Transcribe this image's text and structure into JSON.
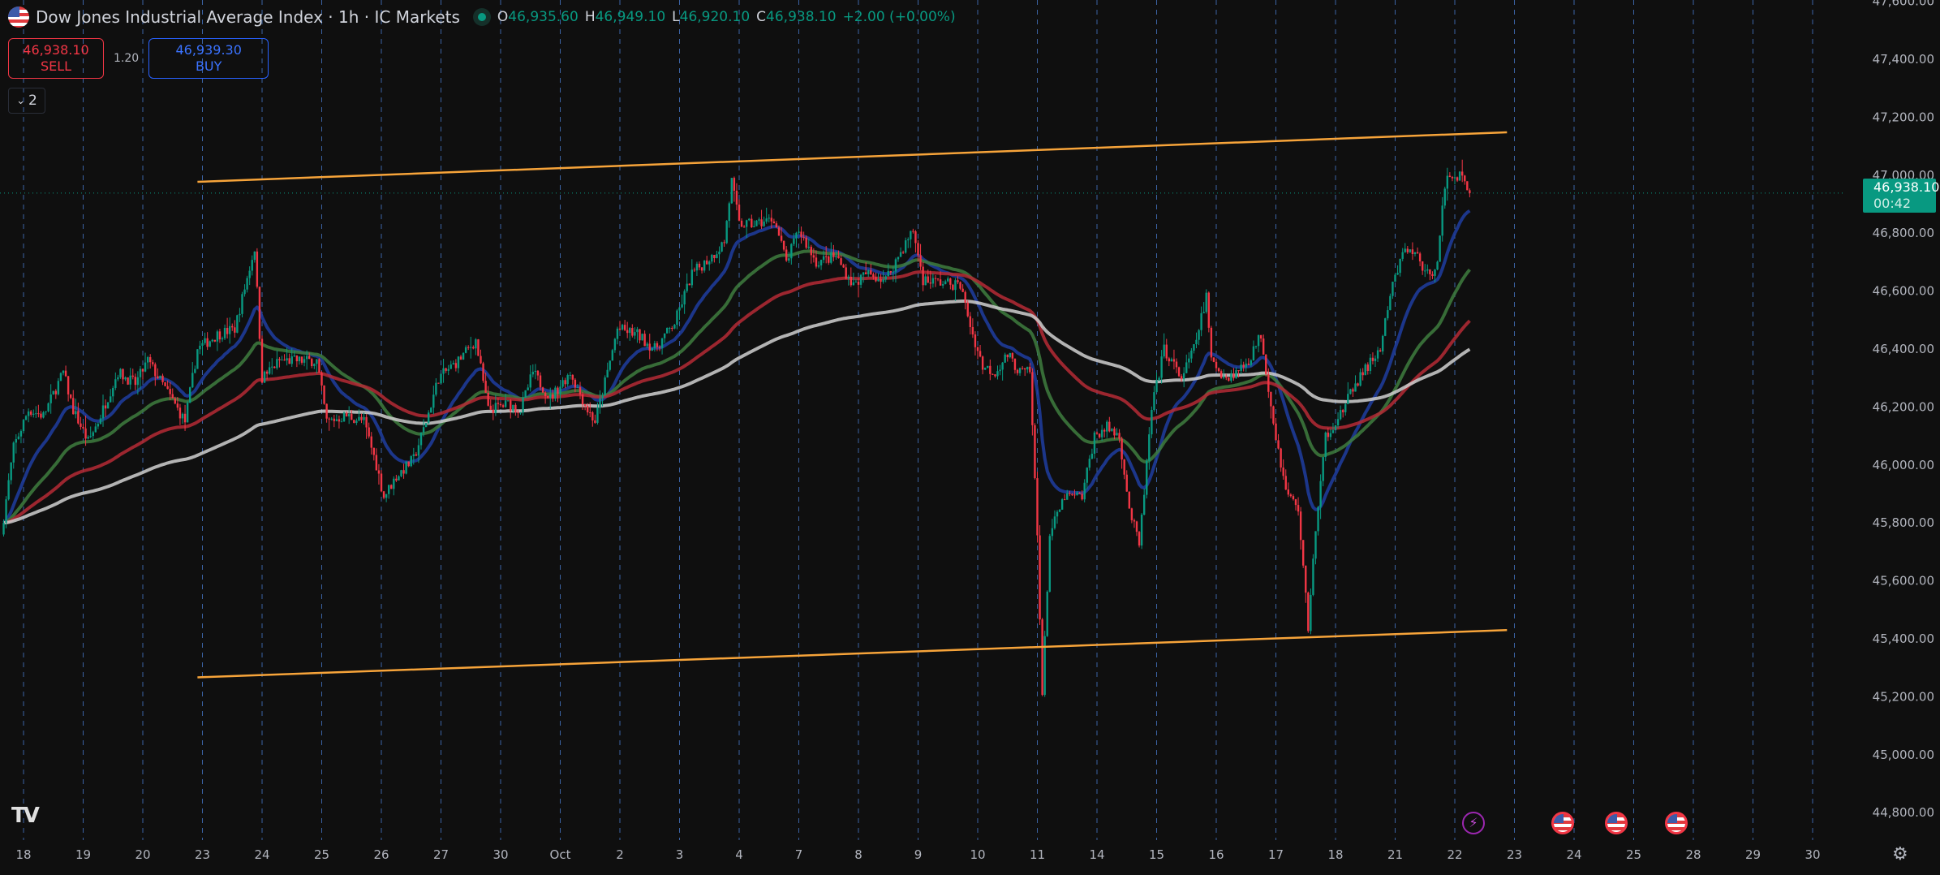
{
  "header": {
    "title": "Dow Jones Industrial Average Index · 1h · IC Markets",
    "ohlc": {
      "o_label": "O",
      "o": "46,935.60",
      "h_label": "H",
      "h": "46,949.10",
      "l_label": "L",
      "l": "46,920.10",
      "c_label": "C",
      "c": "46,938.10",
      "change": "+2.00 (+0.00%)"
    }
  },
  "trade": {
    "sell_price": "46,938.10",
    "sell_label": "SELL",
    "spread": "1.20",
    "buy_price": "46,939.30",
    "buy_label": "BUY"
  },
  "indicators_toggle": {
    "count": "2"
  },
  "price_label": {
    "price": "46,938.10",
    "countdown": "00:42"
  },
  "colors": {
    "up": "#089981",
    "down": "#f23645",
    "ma_fast": "#1f3da0",
    "ma_mid": "#3e7d3e",
    "ma_slow": "#b52a35",
    "ma_long": "#d0d0d0",
    "channel": "#f7a43a",
    "day_grid": "#4a7fd6"
  },
  "icons": {
    "logo": "tradingview-logo",
    "events": [
      "lightning-event-icon",
      "us-flag-event-icon",
      "us-flag-event-icon",
      "us-flag-event-icon"
    ],
    "settings": "gear-icon"
  },
  "chart_data": {
    "type": "candlestick",
    "timeframe": "1h",
    "y_ticks": [
      "47,600.00",
      "47,400.00",
      "47,200.00",
      "47,000.00",
      "46,800.00",
      "46,600.00",
      "46,400.00",
      "46,200.00",
      "46,000.00",
      "45,800.00",
      "45,600.00",
      "45,400.00",
      "45,200.00",
      "45,000.00",
      "44,800.00"
    ],
    "ylim": [
      44750,
      47650
    ],
    "x_ticks": [
      "18",
      "19",
      "20",
      "23",
      "24",
      "25",
      "26",
      "27",
      "30",
      "Oct",
      "2",
      "3",
      "4",
      "7",
      "8",
      "9",
      "10",
      "11",
      "14",
      "15",
      "16",
      "17",
      "18",
      "21",
      "22",
      "23",
      "24",
      "25",
      "28",
      "29",
      "30"
    ],
    "trading_days": [
      "Sep 17",
      "Sep 18",
      "Sep 19",
      "Sep 20",
      "Sep 23",
      "Sep 24",
      "Sep 25",
      "Sep 26",
      "Sep 27",
      "Sep 30",
      "Oct 1",
      "Oct 2",
      "Oct 3",
      "Oct 4",
      "Oct 7",
      "Oct 8",
      "Oct 9",
      "Oct 10",
      "Oct 11",
      "Oct 14",
      "Oct 15",
      "Oct 16",
      "Oct 17",
      "Oct 18",
      "Oct 21",
      "Oct 22",
      "Oct 23",
      "Oct 24",
      "Oct 25",
      "Oct 28",
      "Oct 29",
      "Oct 30"
    ],
    "last_price": 46938.1,
    "price_path": [
      [
        "Sep 17",
        15,
        45760
      ],
      [
        "Sep 17",
        20,
        46060
      ],
      [
        "Sep 18",
        2,
        46190
      ],
      [
        "Sep 18",
        8,
        46170
      ],
      [
        "Sep 18",
        16,
        46320
      ],
      [
        "Sep 18",
        20,
        46190
      ],
      [
        "Sep 19",
        2,
        46080
      ],
      [
        "Sep 19",
        6,
        46150
      ],
      [
        "Sep 19",
        14,
        46320
      ],
      [
        "Sep 19",
        21,
        46280
      ],
      [
        "Sep 20",
        2,
        46360
      ],
      [
        "Sep 20",
        10,
        46250
      ],
      [
        "Sep 20",
        17,
        46150
      ],
      [
        "Sep 20",
        22,
        46400
      ],
      [
        "Sep 23",
        6,
        46450
      ],
      [
        "Sep 23",
        13,
        46470
      ],
      [
        "Sep 23",
        21,
        46750
      ],
      [
        "Sep 24",
        0,
        46300
      ],
      [
        "Sep 24",
        7,
        46360
      ],
      [
        "Sep 24",
        14,
        46360
      ],
      [
        "Sep 24",
        22,
        46360
      ],
      [
        "Sep 25",
        2,
        46150
      ],
      [
        "Sep 25",
        10,
        46170
      ],
      [
        "Sep 25",
        17,
        46150
      ],
      [
        "Sep 25",
        22,
        46000
      ],
      [
        "Sep 26",
        1,
        45890
      ],
      [
        "Sep 26",
        6,
        45960
      ],
      [
        "Sep 26",
        13,
        46020
      ],
      [
        "Sep 26",
        18,
        46150
      ],
      [
        "Sep 26",
        23,
        46300
      ],
      [
        "Sep 27",
        7,
        46360
      ],
      [
        "Sep 27",
        14,
        46430
      ],
      [
        "Sep 27",
        19,
        46190
      ],
      [
        "Sep 30",
        3,
        46210
      ],
      [
        "Sep 30",
        8,
        46190
      ],
      [
        "Sep 30",
        13,
        46320
      ],
      [
        "Sep 30",
        20,
        46230
      ],
      [
        "Oct 1",
        4,
        46320
      ],
      [
        "Oct 1",
        11,
        46190
      ],
      [
        "Oct 1",
        14,
        46150
      ],
      [
        "Oct 1",
        19,
        46320
      ],
      [
        "Oct 1",
        23,
        46470
      ],
      [
        "Oct 2",
        7,
        46450
      ],
      [
        "Oct 2",
        14,
        46400
      ],
      [
        "Oct 2",
        22,
        46490
      ],
      [
        "Oct 3",
        5,
        46660
      ],
      [
        "Oct 3",
        13,
        46720
      ],
      [
        "Oct 3",
        18,
        46770
      ],
      [
        "Oct 3",
        21,
        46980
      ],
      [
        "Oct 4",
        0,
        46830
      ],
      [
        "Oct 4",
        6,
        46830
      ],
      [
        "Oct 4",
        14,
        46850
      ],
      [
        "Oct 4",
        19,
        46700
      ],
      [
        "Oct 7",
        0,
        46810
      ],
      [
        "Oct 7",
        7,
        46700
      ],
      [
        "Oct 7",
        15,
        46720
      ],
      [
        "Oct 7",
        22,
        46620
      ],
      [
        "Oct 8",
        3,
        46660
      ],
      [
        "Oct 8",
        11,
        46640
      ],
      [
        "Oct 8",
        18,
        46750
      ],
      [
        "Oct 8",
        22,
        46810
      ],
      [
        "Oct 9",
        2,
        46640
      ],
      [
        "Oct 9",
        9,
        46630
      ],
      [
        "Oct 9",
        17,
        46620
      ],
      [
        "Oct 9",
        22,
        46450
      ],
      [
        "Oct 10",
        2,
        46340
      ],
      [
        "Oct 10",
        7,
        46320
      ],
      [
        "Oct 10",
        12,
        46380
      ],
      [
        "Oct 10",
        17,
        46320
      ],
      [
        "Oct 10",
        21,
        46320
      ],
      [
        "Oct 11",
        0,
        45760
      ],
      [
        "Oct 11",
        2,
        45210
      ],
      [
        "Oct 11",
        5,
        45760
      ],
      [
        "Oct 11",
        11,
        45890
      ],
      [
        "Oct 11",
        18,
        45890
      ],
      [
        "Oct 11",
        23,
        46100
      ],
      [
        "Oct 14",
        4,
        46130
      ],
      [
        "Oct 14",
        9,
        46100
      ],
      [
        "Oct 14",
        13,
        45850
      ],
      [
        "Oct 14",
        17,
        45720
      ],
      [
        "Oct 14",
        22,
        46190
      ],
      [
        "Oct 15",
        3,
        46400
      ],
      [
        "Oct 15",
        10,
        46300
      ],
      [
        "Oct 15",
        15,
        46400
      ],
      [
        "Oct 15",
        20,
        46580
      ],
      [
        "Oct 15",
        22,
        46360
      ],
      [
        "Oct 16",
        4,
        46300
      ],
      [
        "Oct 16",
        8,
        46320
      ],
      [
        "Oct 16",
        13,
        46360
      ],
      [
        "Oct 16",
        18,
        46450
      ],
      [
        "Oct 16",
        23,
        46150
      ],
      [
        "Oct 17",
        4,
        45910
      ],
      [
        "Oct 17",
        9,
        45850
      ],
      [
        "Oct 17",
        13,
        45440
      ],
      [
        "Oct 17",
        15,
        45680
      ],
      [
        "Oct 17",
        20,
        46100
      ],
      [
        "Oct 18",
        3,
        46190
      ],
      [
        "Oct 18",
        8,
        46280
      ],
      [
        "Oct 18",
        13,
        46340
      ],
      [
        "Oct 18",
        18,
        46400
      ],
      [
        "Oct 18",
        23,
        46620
      ],
      [
        "Oct 21",
        4,
        46750
      ],
      [
        "Oct 21",
        9,
        46720
      ],
      [
        "Oct 21",
        14,
        46640
      ],
      [
        "Oct 21",
        17,
        46720
      ],
      [
        "Oct 21",
        20,
        46960
      ],
      [
        "Oct 21",
        22,
        47000
      ],
      [
        "Oct 22",
        2,
        47000
      ],
      [
        "Oct 22",
        6,
        46938.1
      ]
    ],
    "moving_averages": [
      {
        "color_key": "ma_fast",
        "period": 20
      },
      {
        "color_key": "ma_mid",
        "period": 50
      },
      {
        "color_key": "ma_slow",
        "period": 100
      },
      {
        "color_key": "ma_long",
        "period": 200
      }
    ],
    "trendlines": [
      {
        "from": [
          "Sep 20",
          22,
          46977
        ],
        "to": [
          "Oct 22",
          21,
          47148
        ]
      },
      {
        "from": [
          "Sep 20",
          22,
          45267
        ],
        "to": [
          "Oct 22",
          21,
          45430
        ]
      }
    ]
  }
}
